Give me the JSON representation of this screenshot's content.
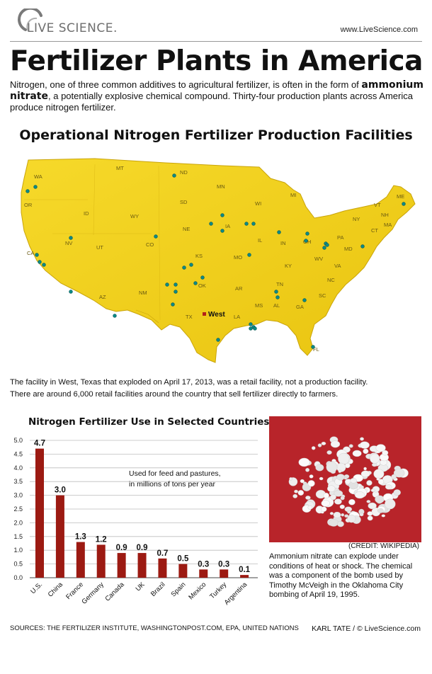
{
  "header": {
    "logo_text": "LIVE SCIENCE.",
    "site_url": "www.LiveScience.com"
  },
  "title": "Fertilizer Plants in America",
  "intro": {
    "part1": "Nitrogen, one of three common additives to agricultural fertilizer, is often in the form of ",
    "highlight": "ammonium nitrate",
    "part2": ", a potentially explosive chemical compound. Thirty-four production plants across America produce nitrogen fertilizer."
  },
  "map": {
    "title": "Operational Nitrogen Fertilizer Production Facilities",
    "west_label": "West",
    "state_labels": [
      "WA",
      "OR",
      "CA",
      "NV",
      "ID",
      "MT",
      "WY",
      "UT",
      "AZ",
      "CO",
      "NM",
      "ND",
      "SD",
      "NE",
      "KS",
      "OK",
      "TX",
      "MN",
      "IA",
      "MO",
      "AR",
      "LA",
      "WI",
      "IL",
      "MS",
      "MI",
      "IN",
      "OH",
      "KY",
      "TN",
      "AL",
      "GA",
      "FL",
      "SC",
      "NC",
      "VA",
      "WV",
      "PA",
      "NY",
      "MD",
      "ME",
      "VT",
      "NH",
      "MA",
      "CT"
    ],
    "colors": {
      "land": "#f2cf16",
      "dot": "#0d8a86",
      "west_marker": "#b3221a"
    },
    "note_line1": "The facility in West, Texas that exploded on April 17, 2013, was a retail facility, not a production facility.",
    "note_line2": "There are around 6,000 retail facilities around the country that sell fertilizer directly to farmers."
  },
  "chart_data": {
    "type": "bar",
    "title": "Nitrogen Fertilizer Use in Selected Countries",
    "annotation_line1": "Used for feed and pastures,",
    "annotation_line2": "in millions of tons per year",
    "categories": [
      "U.S.",
      "China",
      "France",
      "Germany",
      "Canada",
      "UK",
      "Brazil",
      "Spain",
      "Mexico",
      "Turkey",
      "Argentina"
    ],
    "values": [
      4.7,
      3.0,
      1.3,
      1.2,
      0.9,
      0.9,
      0.7,
      0.5,
      0.3,
      0.3,
      0.1
    ],
    "value_labels": [
      "4.7",
      "3.0",
      "1.3",
      "1.2",
      "0.9",
      "0.9",
      "0.7",
      "0.5",
      "0.3",
      "0.3",
      "0.1"
    ],
    "y_ticks": [
      "0.0",
      "0.5",
      "1.0",
      "1.5",
      "2.0",
      "2.5",
      "3.0",
      "3.5",
      "4.0",
      "4.5",
      "5.0"
    ],
    "ylim": [
      0,
      5
    ],
    "grid": true,
    "bar_color": "#9c1a12"
  },
  "photo": {
    "credit": "(CREDIT: WIKIPEDIA)",
    "caption": "Ammonium nitrate can explode under conditions of heat or shock. The chemical was a component of the bomb used by Timothy McVeigh in the Oklahoma City bombing of April 19, 1995.",
    "background_color": "#b8242a"
  },
  "footer": {
    "sources": "SOURCES: THE FERTILIZER INSTITUTE, WASHINGTONPOST.COM, EPA, UNITED NATIONS",
    "credit": "KARL TATE / © LiveScience.com"
  }
}
